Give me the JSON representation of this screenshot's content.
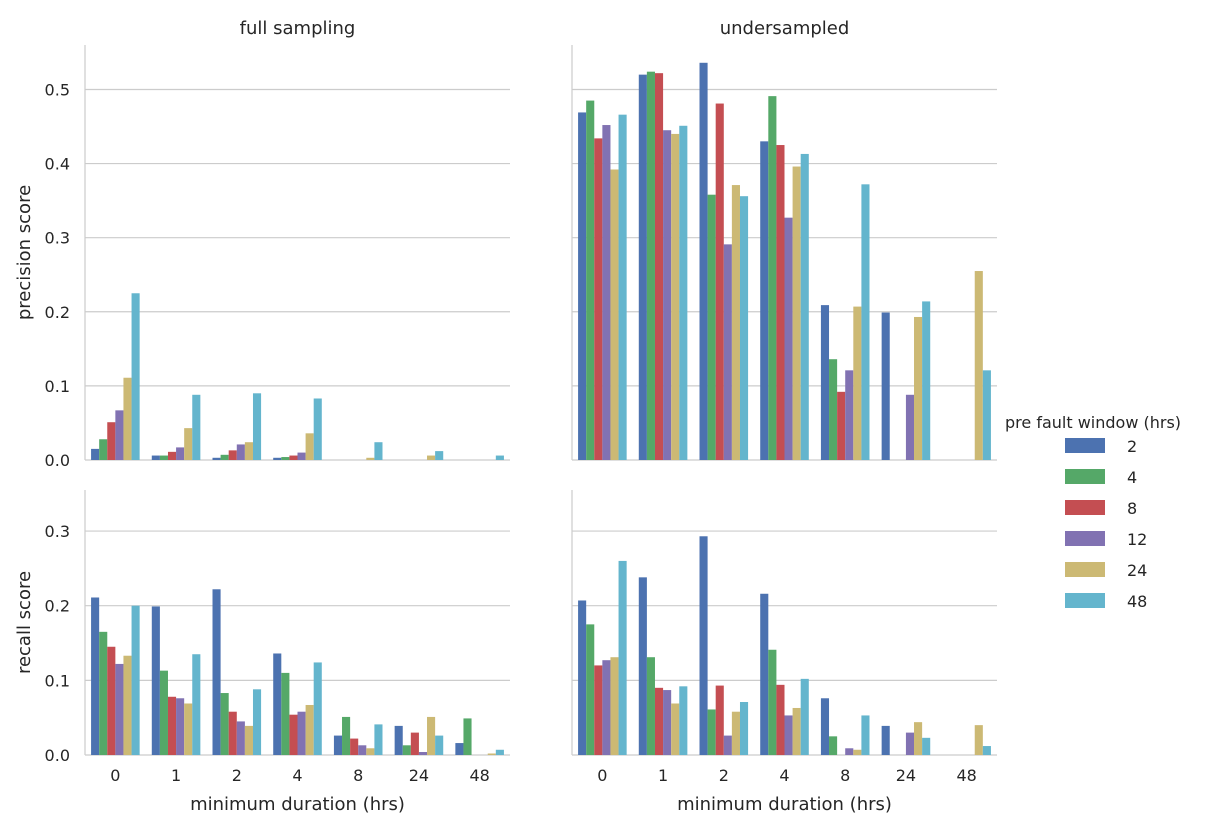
{
  "legend": {
    "title": "pre fault window (hrs)",
    "items": [
      {
        "label": "2",
        "color": "#4c72b0"
      },
      {
        "label": "4",
        "color": "#55a868"
      },
      {
        "label": "8",
        "color": "#c44e52"
      },
      {
        "label": "12",
        "color": "#8172b2"
      },
      {
        "label": "24",
        "color": "#ccb974"
      },
      {
        "label": "48",
        "color": "#64b5cd"
      }
    ]
  },
  "chart_data": [
    {
      "type": "bar",
      "title": "full sampling",
      "xlabel": "",
      "ylabel": "precision score",
      "categories": [
        "0",
        "1",
        "2",
        "4",
        "8",
        "24",
        "48"
      ],
      "ylim": [
        0,
        0.56
      ],
      "yticks": [
        "0.0",
        "0.1",
        "0.2",
        "0.3",
        "0.4",
        "0.5"
      ],
      "grid": true,
      "series": [
        {
          "name": "2",
          "values": [
            0.015,
            0.006,
            0.003,
            0.003,
            0,
            0,
            0
          ]
        },
        {
          "name": "4",
          "values": [
            0.028,
            0.006,
            0.007,
            0.004,
            0,
            0,
            0
          ]
        },
        {
          "name": "8",
          "values": [
            0.051,
            0.011,
            0.013,
            0.006,
            0,
            0,
            0
          ]
        },
        {
          "name": "12",
          "values": [
            0.067,
            0.017,
            0.021,
            0.01,
            0,
            0,
            0
          ]
        },
        {
          "name": "24",
          "values": [
            0.111,
            0.043,
            0.024,
            0.036,
            0.003,
            0.006,
            0
          ]
        },
        {
          "name": "48",
          "values": [
            0.225,
            0.088,
            0.09,
            0.083,
            0.024,
            0.012,
            0.006
          ]
        }
      ]
    },
    {
      "type": "bar",
      "title": "undersampled",
      "xlabel": "",
      "ylabel": "",
      "categories": [
        "0",
        "1",
        "2",
        "4",
        "8",
        "24",
        "48"
      ],
      "ylim": [
        0,
        0.56
      ],
      "yticks": [],
      "grid": true,
      "series": [
        {
          "name": "2",
          "values": [
            0.469,
            0.52,
            0.536,
            0.43,
            0.209,
            0.199,
            0
          ]
        },
        {
          "name": "4",
          "values": [
            0.485,
            0.524,
            0.358,
            0.491,
            0.136,
            0,
            0
          ]
        },
        {
          "name": "8",
          "values": [
            0.434,
            0.522,
            0.481,
            0.425,
            0.092,
            0,
            0
          ]
        },
        {
          "name": "12",
          "values": [
            0.452,
            0.445,
            0.291,
            0.327,
            0.121,
            0.088,
            0
          ]
        },
        {
          "name": "24",
          "values": [
            0.392,
            0.44,
            0.371,
            0.396,
            0.207,
            0.193,
            0.255
          ]
        },
        {
          "name": "48",
          "values": [
            0.466,
            0.451,
            0.356,
            0.413,
            0.372,
            0.214,
            0.121
          ]
        }
      ]
    },
    {
      "type": "bar",
      "title": "",
      "xlabel": "minimum duration (hrs)",
      "ylabel": "recall score",
      "categories": [
        "0",
        "1",
        "2",
        "4",
        "8",
        "24",
        "48"
      ],
      "ylim": [
        0,
        0.355
      ],
      "yticks": [
        "0.0",
        "0.1",
        "0.2",
        "0.3"
      ],
      "grid": true,
      "series": [
        {
          "name": "2",
          "values": [
            0.211,
            0.199,
            0.222,
            0.136,
            0.026,
            0.039,
            0.016
          ]
        },
        {
          "name": "4",
          "values": [
            0.165,
            0.113,
            0.083,
            0.11,
            0.051,
            0.013,
            0.049
          ]
        },
        {
          "name": "8",
          "values": [
            0.145,
            0.078,
            0.058,
            0.054,
            0.022,
            0.03,
            0
          ]
        },
        {
          "name": "12",
          "values": [
            0.122,
            0.076,
            0.045,
            0.058,
            0.013,
            0.004,
            0
          ]
        },
        {
          "name": "24",
          "values": [
            0.133,
            0.069,
            0.039,
            0.067,
            0.009,
            0.051,
            0.002
          ]
        },
        {
          "name": "48",
          "values": [
            0.2,
            0.135,
            0.088,
            0.124,
            0.041,
            0.026,
            0.007
          ]
        }
      ]
    },
    {
      "type": "bar",
      "title": "",
      "xlabel": "minimum duration (hrs)",
      "ylabel": "",
      "categories": [
        "0",
        "1",
        "2",
        "4",
        "8",
        "24",
        "48"
      ],
      "ylim": [
        0,
        0.355
      ],
      "yticks": [],
      "grid": true,
      "series": [
        {
          "name": "2",
          "values": [
            0.207,
            0.238,
            0.293,
            0.216,
            0.076,
            0.039,
            0
          ]
        },
        {
          "name": "4",
          "values": [
            0.175,
            0.131,
            0.061,
            0.141,
            0.025,
            0,
            0
          ]
        },
        {
          "name": "8",
          "values": [
            0.12,
            0.09,
            0.093,
            0.094,
            0,
            0,
            0
          ]
        },
        {
          "name": "12",
          "values": [
            0.127,
            0.087,
            0.026,
            0.053,
            0.009,
            0.03,
            0
          ]
        },
        {
          "name": "24",
          "values": [
            0.131,
            0.069,
            0.058,
            0.063,
            0.007,
            0.044,
            0.04
          ]
        },
        {
          "name": "48",
          "values": [
            0.26,
            0.092,
            0.071,
            0.102,
            0.053,
            0.023,
            0.012
          ]
        }
      ]
    }
  ]
}
